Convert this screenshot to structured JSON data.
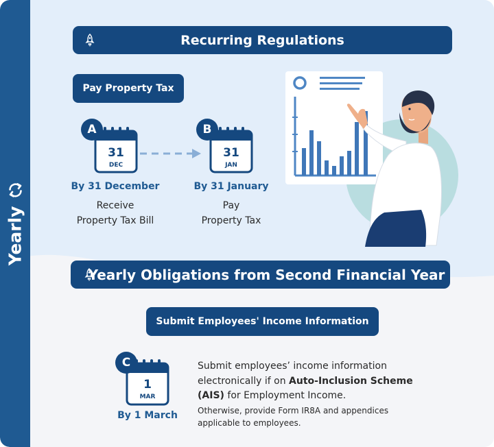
{
  "sidebar": {
    "label": "Yearly",
    "icon": "refresh-icon"
  },
  "section1": {
    "title": "Recurring Regulations",
    "icon": "rocket-icon",
    "task": "Pay Property Tax",
    "steps": [
      {
        "letter": "A",
        "day": "31",
        "month": "DEC",
        "date_label": "By 31 December",
        "desc_line1": "Receive",
        "desc_line2": "Property Tax Bill"
      },
      {
        "letter": "B",
        "day": "31",
        "month": "JAN",
        "date_label": "By 31 January",
        "desc_line1": "Pay",
        "desc_line2": "Property Tax"
      }
    ]
  },
  "section2": {
    "title": "Yearly Obligations from Second Financial Year",
    "icon": "rocket-icon",
    "task": "Submit Employees' Income Information",
    "step": {
      "letter": "C",
      "day": "1",
      "month": "MAR",
      "date_label": "By 1 March"
    },
    "info": {
      "line_a": "Submit employees’ income information",
      "line_b_pre": "electronically if on ",
      "line_b_bold": "Auto-Inclusion Scheme",
      "line_c_bold": "(AIS)",
      "line_c_post": " for Employment Income.",
      "note_line1": "Otherwise, provide Form IR8A and appendices",
      "note_line2": "applicable to employees."
    }
  },
  "colors": {
    "navy": "#15487f",
    "sidebar": "#1f5a92",
    "light_bg": "#e3eefa",
    "teal_circle": "#b9dde0"
  }
}
